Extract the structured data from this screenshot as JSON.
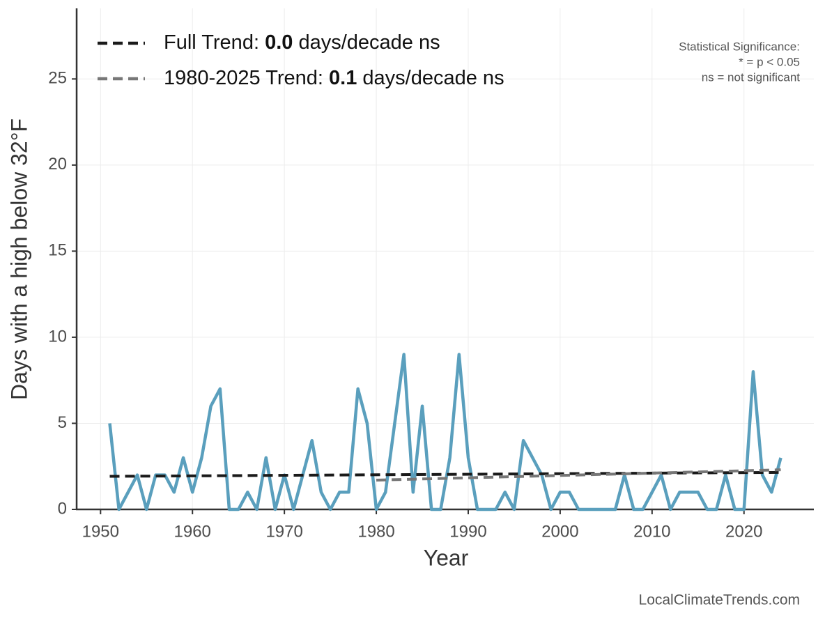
{
  "chart_data": {
    "type": "line",
    "x_label": "Year",
    "y_label": "Days with a high below 32°F",
    "xlim": [
      1947.4,
      2027.6
    ],
    "ylim": [
      0,
      29.1
    ],
    "xticks": [
      1950,
      1960,
      1970,
      1980,
      1990,
      2000,
      2010,
      2020
    ],
    "yticks": [
      0,
      5,
      10,
      15,
      20,
      25
    ],
    "grid": true,
    "series": [
      {
        "color": "#5a9fbd",
        "x": [
          1951,
          1952,
          1953,
          1954,
          1955,
          1956,
          1957,
          1958,
          1959,
          1960,
          1961,
          1962,
          1963,
          1964,
          1965,
          1966,
          1967,
          1968,
          1969,
          1970,
          1971,
          1972,
          1973,
          1974,
          1975,
          1976,
          1977,
          1978,
          1979,
          1980,
          1981,
          1982,
          1983,
          1984,
          1985,
          1986,
          1987,
          1988,
          1989,
          1990,
          1991,
          1992,
          1993,
          1994,
          1995,
          1996,
          1997,
          1998,
          1999,
          2000,
          2001,
          2002,
          2003,
          2004,
          2005,
          2006,
          2007,
          2008,
          2009,
          2010,
          2011,
          2012,
          2013,
          2014,
          2015,
          2016,
          2017,
          2018,
          2019,
          2020,
          2021,
          2022,
          2023,
          2024
        ],
        "values": [
          5,
          0,
          1,
          2,
          0,
          2,
          2,
          1,
          3,
          1,
          3,
          6,
          7,
          0,
          0,
          1,
          0,
          3,
          0,
          2,
          0,
          2,
          4,
          1,
          0,
          1,
          1,
          7,
          5,
          0,
          1,
          5,
          9,
          1,
          6,
          0,
          0,
          3,
          9,
          3,
          0,
          0,
          0,
          1,
          0,
          4,
          3,
          2,
          0,
          1,
          1,
          0,
          0,
          0,
          0,
          0,
          2,
          0,
          0,
          1,
          2,
          0,
          1,
          1,
          1,
          0,
          0,
          2,
          0,
          0,
          8,
          2,
          1,
          3
        ]
      },
      {
        "name": "Full Trend:",
        "slope": "0.0",
        "units": "days/decade ns",
        "color": "#1a1a1a",
        "dashed": true,
        "x": [
          1951,
          2024
        ],
        "values": [
          1.92,
          2.15
        ]
      },
      {
        "name": "1980-2025 Trend:",
        "slope": "0.1",
        "units": "days/decade ns",
        "color": "#777777",
        "dashed": true,
        "x": [
          1980,
          2024
        ],
        "values": [
          1.7,
          2.3
        ]
      }
    ],
    "significance_note": [
      "Statistical Significance:",
      "* = p < 0.05",
      "ns = not significant"
    ],
    "source": "LocalClimateTrends.com"
  }
}
